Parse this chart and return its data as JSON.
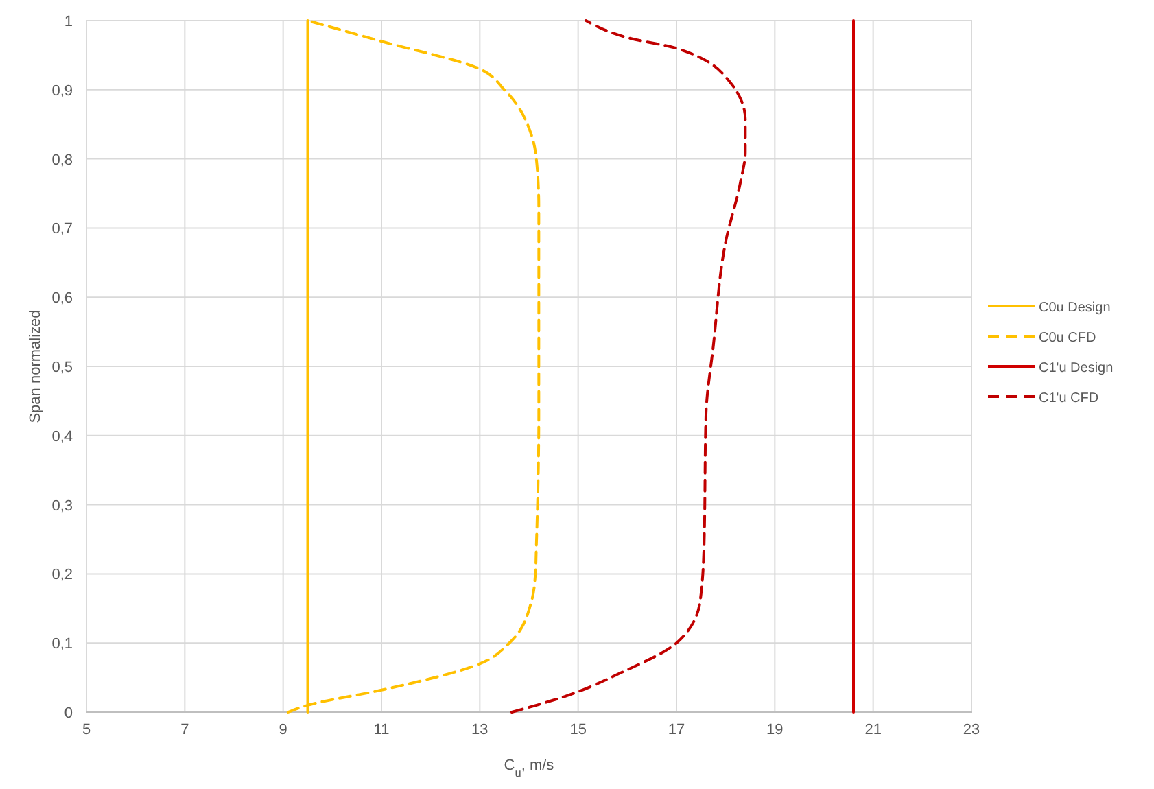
{
  "chart_data": {
    "type": "line",
    "xlabel": "C$_{u}$, m/s",
    "ylabel": "Span normalized",
    "xlim": [
      5,
      23
    ],
    "xticks": [
      5,
      7,
      9,
      11,
      13,
      15,
      17,
      19,
      21,
      23
    ],
    "ylim": [
      0,
      1
    ],
    "yticks": [
      {
        "value": 0,
        "label": "0"
      },
      {
        "value": 0.1,
        "label": "0,1"
      },
      {
        "value": 0.2,
        "label": "0,2"
      },
      {
        "value": 0.3,
        "label": "0,3"
      },
      {
        "value": 0.4,
        "label": "0,4"
      },
      {
        "value": 0.5,
        "label": "0,5"
      },
      {
        "value": 0.6,
        "label": "0,6"
      },
      {
        "value": 0.7,
        "label": "0,7"
      },
      {
        "value": 0.8,
        "label": "0,8"
      },
      {
        "value": 0.9,
        "label": "0,9"
      },
      {
        "value": 1,
        "label": "1"
      }
    ],
    "grid": true,
    "legend": "right",
    "series": [
      {
        "name": "C0u Design",
        "color": "#ffc000",
        "line_style": "solid",
        "x": [
          9.5,
          9.5
        ],
        "values": [
          0,
          1
        ]
      },
      {
        "name": "C0u CFD",
        "color": "#ffc000",
        "line_style": "dashed",
        "x": [
          9.1,
          9.5,
          11.0,
          13.0,
          13.6,
          14.05,
          14.13,
          14.15,
          14.2,
          14.2,
          14.15,
          14.07,
          13.5,
          13.0,
          11.0,
          9.5
        ],
        "values": [
          0,
          0.01,
          0.032,
          0.07,
          0.1,
          0.16,
          0.2,
          0.24,
          0.43,
          0.73,
          0.8,
          0.83,
          0.9,
          0.93,
          0.97,
          1
        ]
      },
      {
        "name": "C1'u Design",
        "color": "#d00000",
        "line_style": "solid",
        "x": [
          20.6,
          20.6
        ],
        "values": [
          0,
          1
        ]
      },
      {
        "name": "C1'u CFD",
        "color": "#c00000",
        "line_style": "dashed",
        "x": [
          13.65,
          14.7,
          15.9,
          17.0,
          17.48,
          17.56,
          17.6,
          17.75,
          18.0,
          18.3,
          18.4,
          18.4,
          18.1,
          17.0,
          16.08,
          15.16
        ],
        "values": [
          0,
          0.022,
          0.058,
          0.1,
          0.16,
          0.24,
          0.43,
          0.53,
          0.68,
          0.766,
          0.81,
          0.857,
          0.91,
          0.96,
          0.974,
          1
        ]
      }
    ]
  }
}
